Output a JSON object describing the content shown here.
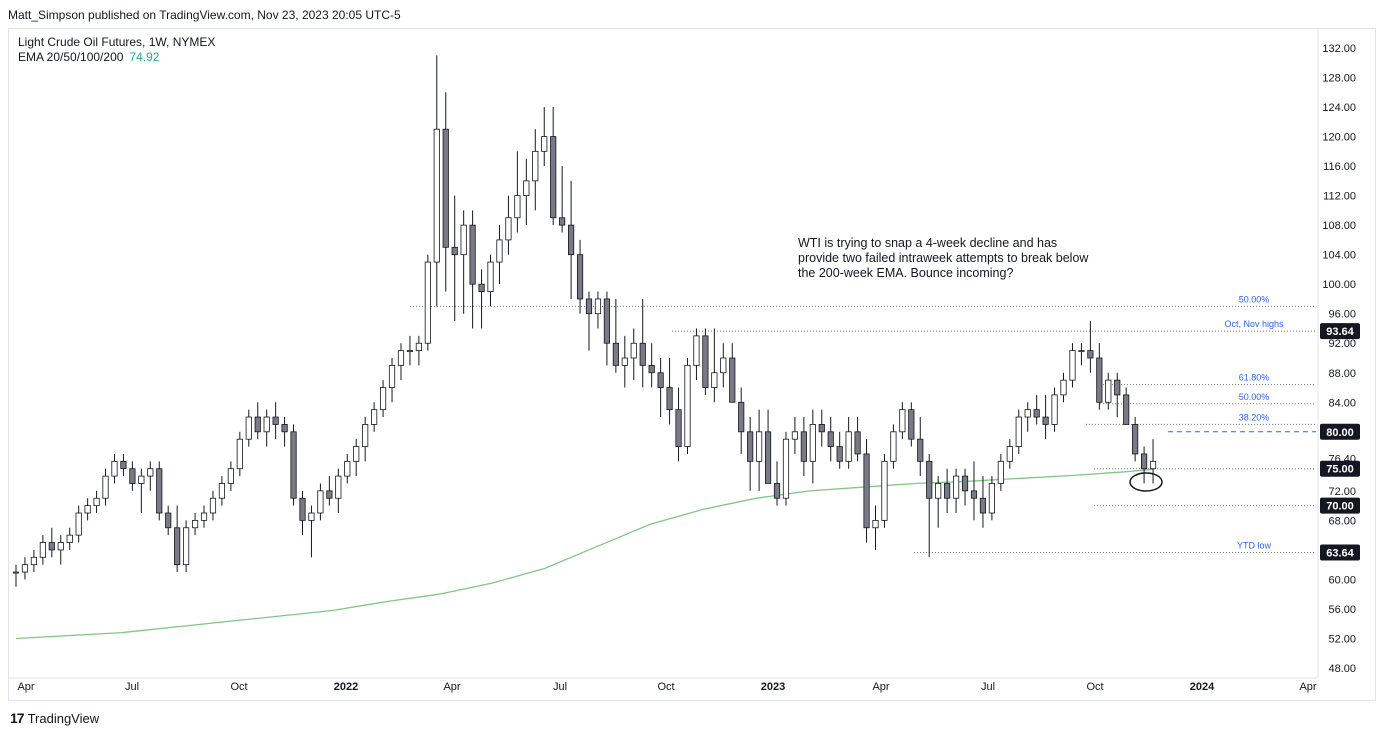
{
  "header": {
    "publisher_line": "Matt_Simpson published on TradingView.com, Nov 23, 2023 20:05 UTC-5"
  },
  "legend": {
    "symbol_line": "Light Crude Oil Futures, 1W, NYMEX",
    "ema_label": "EMA 20/50/100/200",
    "ema_value": "74.92"
  },
  "annotation": "WTI is trying to snap a 4-week decline and has provide two failed intraweek attempts to break below the 200-week EMA. Bounce incoming?",
  "footer": {
    "brand": "TradingView",
    "logo": "17"
  },
  "colors": {
    "candle_up": "#ffffff",
    "candle_down": "#787b86",
    "wick": "#131722",
    "ema": "#81c784",
    "price_badge": "#131722",
    "level_label": "#2962ff"
  },
  "chart_data": {
    "type": "candlestick",
    "title": "Light Crude Oil Futures, 1W, NYMEX",
    "ylim": [
      48,
      132
    ],
    "y_ticks": [
      "132.00",
      "128.00",
      "124.00",
      "120.00",
      "116.00",
      "112.00",
      "108.00",
      "104.00",
      "100.00",
      "96.00",
      "92.00",
      "88.00",
      "84.00",
      "80.00",
      "76.40",
      "72.00",
      "68.00",
      "64.00",
      "60.00",
      "56.00",
      "52.00",
      "48.00"
    ],
    "x_ticks": [
      "Apr",
      "Jul",
      "Oct",
      "2022",
      "Apr",
      "Jul",
      "Oct",
      "2023",
      "Apr",
      "Jul",
      "Oct",
      "2024",
      "Apr"
    ],
    "bold_x_ticks": [
      "2022",
      "2023",
      "2024"
    ],
    "price_badges": [
      "93.64",
      "80.00",
      "75.00",
      "70.00",
      "63.64"
    ],
    "levels": [
      {
        "label": "50.00%",
        "value": 97.0
      },
      {
        "label": "Oct, Nov highs",
        "value": 93.64
      },
      {
        "label": "61.80%",
        "value": 86.4
      },
      {
        "label": "50.00%",
        "value": 83.8
      },
      {
        "label": "38.20%",
        "value": 81.0
      },
      {
        "label": "",
        "value": 80.0
      },
      {
        "label": "",
        "value": 75.0
      },
      {
        "label": "",
        "value": 70.0
      },
      {
        "label": "YTD low",
        "value": 63.64
      }
    ],
    "ema200": [
      [
        0,
        52
      ],
      [
        20,
        52.8
      ],
      [
        40,
        54.3
      ],
      [
        60,
        55.8
      ],
      [
        70,
        57
      ],
      [
        80,
        58
      ],
      [
        90,
        59.5
      ],
      [
        100,
        61.5
      ],
      [
        110,
        64.5
      ],
      [
        120,
        67.5
      ],
      [
        130,
        69.5
      ],
      [
        140,
        71
      ],
      [
        150,
        72
      ],
      [
        160,
        72.5
      ],
      [
        170,
        73
      ],
      [
        180,
        73.3
      ],
      [
        190,
        73.7
      ],
      [
        200,
        74.1
      ],
      [
        210,
        74.6
      ],
      [
        215,
        74.92
      ]
    ],
    "ohlc": [
      [
        61,
        62,
        59,
        61
      ],
      [
        61,
        63,
        60,
        62
      ],
      [
        62,
        64,
        61,
        63
      ],
      [
        63,
        66,
        62,
        65
      ],
      [
        65,
        67,
        63,
        64
      ],
      [
        64,
        66,
        62,
        65
      ],
      [
        65,
        67,
        64,
        66
      ],
      [
        66,
        70,
        65,
        69
      ],
      [
        69,
        71,
        68,
        70
      ],
      [
        70,
        72,
        69,
        71
      ],
      [
        71,
        75,
        70,
        74
      ],
      [
        74,
        77,
        73,
        76
      ],
      [
        76,
        77,
        74,
        75
      ],
      [
        75,
        76,
        72,
        73
      ],
      [
        73,
        75,
        69,
        74
      ],
      [
        74,
        76,
        72,
        75
      ],
      [
        75,
        76,
        68,
        69
      ],
      [
        69,
        70,
        66,
        67
      ],
      [
        67,
        70,
        61,
        62
      ],
      [
        62,
        68,
        61,
        67
      ],
      [
        67,
        69,
        66,
        68
      ],
      [
        68,
        70,
        67,
        69
      ],
      [
        69,
        72,
        68,
        71
      ],
      [
        71,
        74,
        70,
        73
      ],
      [
        73,
        76,
        72,
        75
      ],
      [
        75,
        80,
        74,
        79
      ],
      [
        79,
        83,
        78,
        82
      ],
      [
        82,
        84,
        79,
        80
      ],
      [
        80,
        83,
        78,
        82
      ],
      [
        82,
        84,
        79,
        81
      ],
      [
        81,
        82,
        78,
        80
      ],
      [
        80,
        81,
        70,
        71
      ],
      [
        71,
        72,
        66,
        68
      ],
      [
        68,
        70,
        63,
        69
      ],
      [
        69,
        73,
        68,
        72
      ],
      [
        72,
        74,
        70,
        71
      ],
      [
        71,
        75,
        69,
        74
      ],
      [
        74,
        77,
        73,
        76
      ],
      [
        76,
        79,
        74,
        78
      ],
      [
        78,
        82,
        76,
        81
      ],
      [
        81,
        84,
        80,
        83
      ],
      [
        83,
        87,
        82,
        86
      ],
      [
        86,
        90,
        84,
        89
      ],
      [
        89,
        92,
        87,
        91
      ],
      [
        91,
        93,
        89,
        91
      ],
      [
        91,
        93,
        89,
        92
      ],
      [
        92,
        104,
        91,
        103
      ],
      [
        103,
        131,
        97,
        121
      ],
      [
        121,
        126,
        99,
        105
      ],
      [
        105,
        112,
        95,
        104
      ],
      [
        104,
        110,
        96,
        108
      ],
      [
        108,
        110,
        94,
        100
      ],
      [
        100,
        102,
        94,
        99
      ],
      [
        99,
        104,
        97,
        103
      ],
      [
        103,
        108,
        100,
        106
      ],
      [
        106,
        112,
        104,
        109
      ],
      [
        109,
        118,
        107,
        112
      ],
      [
        112,
        117,
        108,
        114
      ],
      [
        114,
        121,
        110,
        118
      ],
      [
        118,
        124,
        116,
        120
      ],
      [
        120,
        124,
        108,
        109
      ],
      [
        109,
        116,
        107,
        108
      ],
      [
        108,
        114,
        98,
        104
      ],
      [
        104,
        106,
        96,
        98
      ],
      [
        98,
        99,
        91,
        96
      ],
      [
        96,
        99,
        94,
        98
      ],
      [
        98,
        99,
        89,
        92
      ],
      [
        92,
        98,
        88,
        89
      ],
      [
        89,
        93,
        86,
        90
      ],
      [
        90,
        94,
        87,
        92
      ],
      [
        92,
        98,
        86,
        89
      ],
      [
        89,
        92,
        86,
        88
      ],
      [
        88,
        90,
        82,
        86
      ],
      [
        86,
        90,
        81,
        83
      ],
      [
        83,
        86,
        76,
        78
      ],
      [
        78,
        90,
        77,
        89
      ],
      [
        89,
        94,
        87,
        93
      ],
      [
        93,
        94,
        85,
        86
      ],
      [
        86,
        94,
        84,
        88
      ],
      [
        88,
        92,
        86,
        90
      ],
      [
        90,
        92,
        84,
        84
      ],
      [
        84,
        86,
        77,
        80
      ],
      [
        80,
        82,
        72,
        76
      ],
      [
        76,
        83,
        72,
        80
      ],
      [
        80,
        83,
        73,
        73
      ],
      [
        73,
        76,
        70,
        71
      ],
      [
        71,
        80,
        70,
        79
      ],
      [
        79,
        82,
        77,
        80
      ],
      [
        80,
        82,
        74,
        76
      ],
      [
        76,
        83,
        73,
        81
      ],
      [
        81,
        83,
        78,
        80
      ],
      [
        80,
        82,
        76,
        78
      ],
      [
        78,
        80,
        75,
        76
      ],
      [
        76,
        82,
        75,
        80
      ],
      [
        80,
        82,
        76,
        77
      ],
      [
        77,
        79,
        65,
        67
      ],
      [
        67,
        70,
        64,
        68
      ],
      [
        68,
        77,
        67,
        76
      ],
      [
        76,
        81,
        75,
        80
      ],
      [
        80,
        84,
        79,
        83
      ],
      [
        83,
        84,
        78,
        79
      ],
      [
        79,
        82,
        74,
        76
      ],
      [
        76,
        77,
        63,
        71
      ],
      [
        71,
        74,
        67,
        73
      ],
      [
        73,
        75,
        69,
        71
      ],
      [
        71,
        75,
        69,
        74
      ],
      [
        74,
        75,
        70,
        72
      ],
      [
        72,
        76,
        68,
        71
      ],
      [
        71,
        74,
        67,
        69
      ],
      [
        69,
        74,
        68,
        73
      ],
      [
        73,
        77,
        72,
        76
      ],
      [
        76,
        79,
        75,
        78
      ],
      [
        78,
        83,
        77,
        82
      ],
      [
        82,
        84,
        80,
        83
      ],
      [
        83,
        85,
        81,
        82
      ],
      [
        82,
        85,
        79,
        81
      ],
      [
        81,
        86,
        80,
        85
      ],
      [
        85,
        88,
        84,
        87
      ],
      [
        87,
        92,
        86,
        91
      ],
      [
        91,
        92,
        89,
        91
      ],
      [
        91,
        95,
        88,
        90
      ],
      [
        90,
        92,
        83,
        84
      ],
      [
        84,
        88,
        83,
        87
      ],
      [
        87,
        88,
        82,
        85
      ],
      [
        85,
        86,
        81,
        81
      ],
      [
        81,
        82,
        76,
        77
      ],
      [
        77,
        78,
        73,
        75
      ],
      [
        75,
        79,
        73,
        76
      ]
    ]
  }
}
